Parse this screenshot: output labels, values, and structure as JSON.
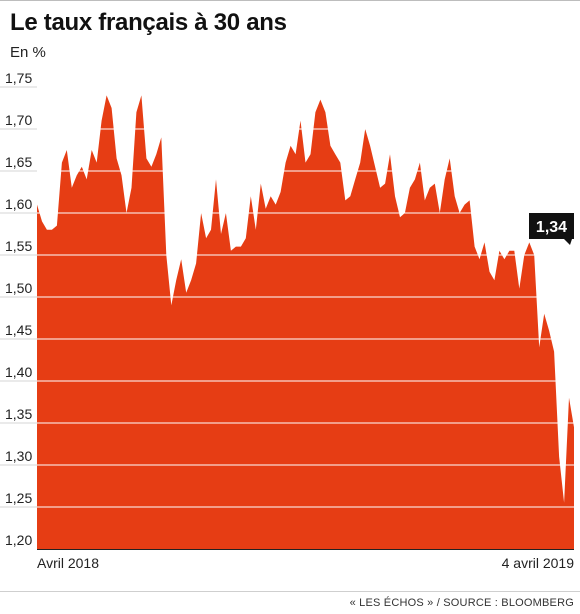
{
  "header": {
    "title": "Le taux français à 30 ans",
    "unit": "En %"
  },
  "footer": {
    "source": "« LES ÉCHOS » / SOURCE : BLOOMBERG"
  },
  "colors": {
    "area": "#e63d14",
    "grid": "#ffffff",
    "axis": "#222222",
    "callout_bg": "#111111",
    "callout_text": "#ffffff"
  },
  "chart_data": {
    "type": "area",
    "title": "Le taux français à 30 ans",
    "ylabel": "En %",
    "ylim": [
      1.2,
      1.75
    ],
    "yticks": [
      "1,20",
      "1,25",
      "1,30",
      "1,35",
      "1,40",
      "1,45",
      "1,50",
      "1,55",
      "1,60",
      "1,65",
      "1,70",
      "1,75"
    ],
    "x_labels": [
      "Avril 2018",
      "4 avril 2019"
    ],
    "last_value_label": "1,34",
    "grid": true,
    "values": [
      1.61,
      1.59,
      1.58,
      1.58,
      1.585,
      1.66,
      1.675,
      1.63,
      1.645,
      1.655,
      1.64,
      1.675,
      1.66,
      1.71,
      1.74,
      1.725,
      1.665,
      1.645,
      1.6,
      1.63,
      1.72,
      1.74,
      1.665,
      1.655,
      1.67,
      1.69,
      1.55,
      1.49,
      1.52,
      1.545,
      1.505,
      1.52,
      1.54,
      1.6,
      1.57,
      1.58,
      1.64,
      1.575,
      1.6,
      1.555,
      1.56,
      1.56,
      1.57,
      1.62,
      1.58,
      1.635,
      1.605,
      1.62,
      1.61,
      1.625,
      1.66,
      1.68,
      1.67,
      1.71,
      1.66,
      1.67,
      1.72,
      1.735,
      1.72,
      1.68,
      1.67,
      1.66,
      1.615,
      1.62,
      1.64,
      1.66,
      1.7,
      1.68,
      1.655,
      1.63,
      1.635,
      1.67,
      1.62,
      1.595,
      1.6,
      1.63,
      1.64,
      1.66,
      1.615,
      1.63,
      1.635,
      1.6,
      1.64,
      1.665,
      1.62,
      1.6,
      1.61,
      1.615,
      1.56,
      1.545,
      1.565,
      1.53,
      1.52,
      1.555,
      1.545,
      1.555,
      1.555,
      1.51,
      1.55,
      1.565,
      1.55,
      1.44,
      1.48,
      1.46,
      1.435,
      1.31,
      1.255,
      1.38,
      1.345
    ]
  }
}
